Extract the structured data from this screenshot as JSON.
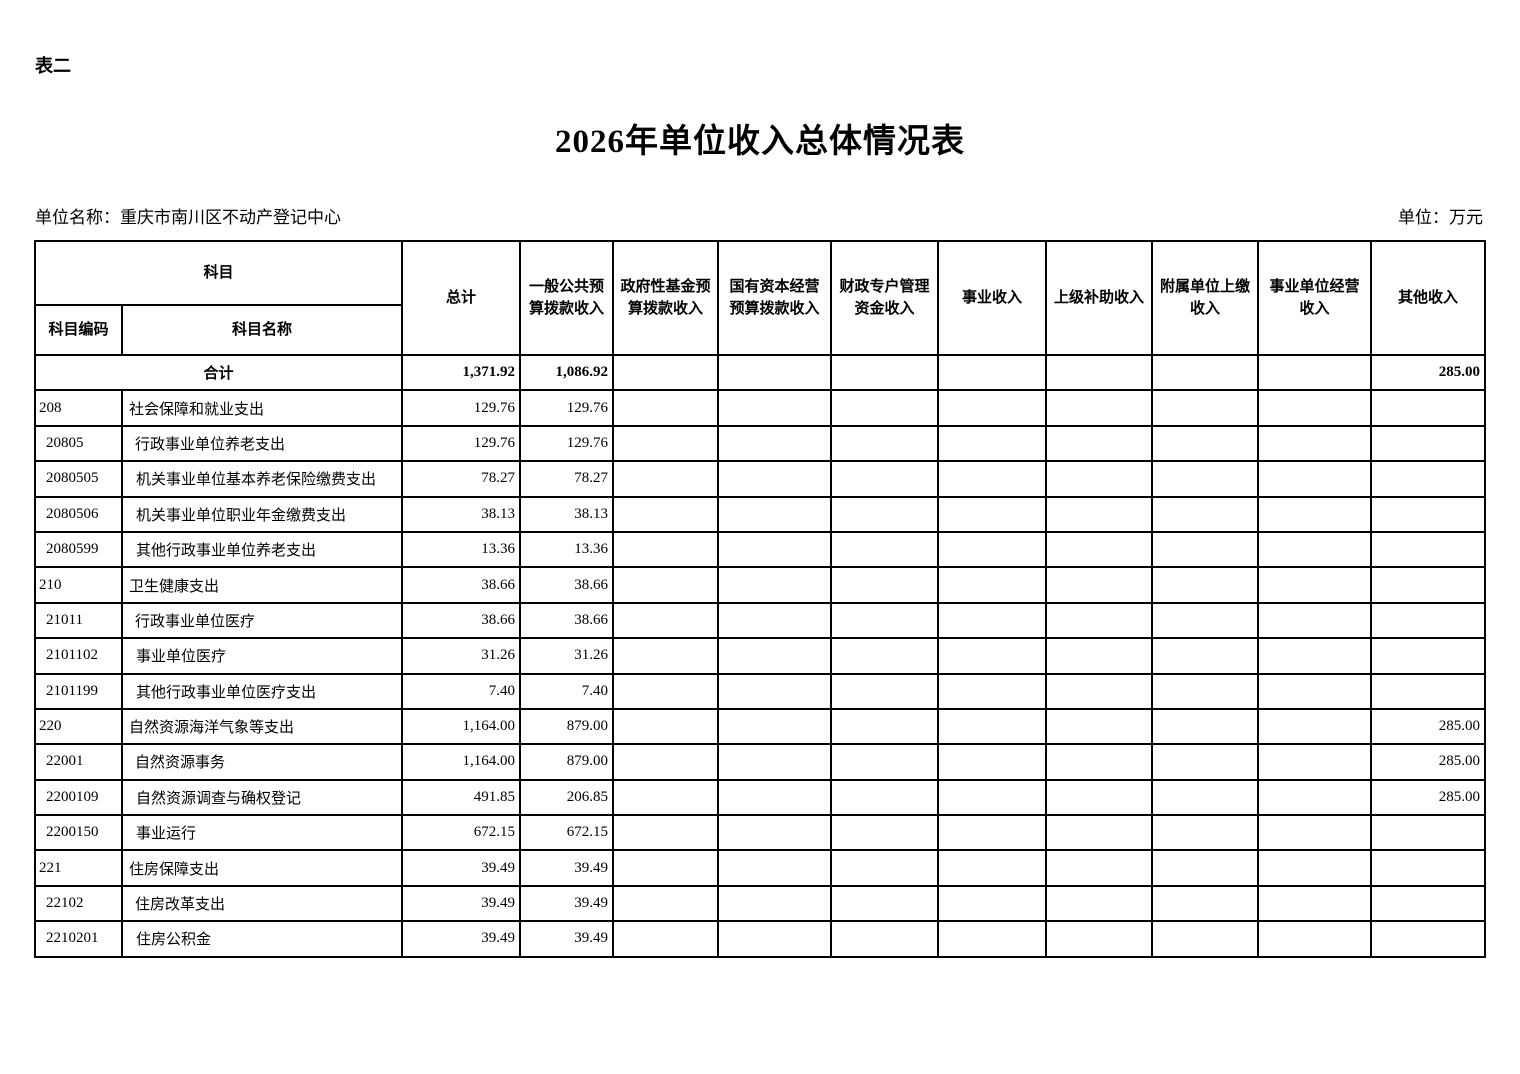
{
  "page": {
    "form_label": "表二",
    "title": "2026年单位收入总体情况表",
    "unit_name": "单位名称：重庆市南川区不动产登记中心",
    "unit_measure": "单位：万元"
  },
  "table": {
    "header": {
      "subject_group": "科目",
      "subject_code": "科目编码",
      "subject_name": "科目名称",
      "columns": [
        "总计",
        "一般公共预算拨款收入",
        "政府性基金预算拨款收入",
        "国有资本经营预算拨款收入",
        "财政专户管理资金收入",
        "事业收入",
        "上级补助收入",
        "附属单位上缴收入",
        "事业单位经营收入",
        "其他收入"
      ]
    },
    "total_row": {
      "label": "合计",
      "values": [
        "1,371.92",
        "1,086.92",
        "",
        "",
        "",
        "",
        "",
        "",
        "",
        "285.00"
      ]
    },
    "rows": [
      {
        "code": "208",
        "name": "社会保障和就业支出",
        "level": 1,
        "values": [
          "129.76",
          "129.76",
          "",
          "",
          "",
          "",
          "",
          "",
          "",
          ""
        ]
      },
      {
        "code": "20805",
        "name": "行政事业单位养老支出",
        "level": 2,
        "values": [
          "129.76",
          "129.76",
          "",
          "",
          "",
          "",
          "",
          "",
          "",
          ""
        ]
      },
      {
        "code": "2080505",
        "name": "机关事业单位基本养老保险缴费支出",
        "level": 3,
        "values": [
          "78.27",
          "78.27",
          "",
          "",
          "",
          "",
          "",
          "",
          "",
          ""
        ]
      },
      {
        "code": "2080506",
        "name": "机关事业单位职业年金缴费支出",
        "level": 3,
        "values": [
          "38.13",
          "38.13",
          "",
          "",
          "",
          "",
          "",
          "",
          "",
          ""
        ]
      },
      {
        "code": "2080599",
        "name": "其他行政事业单位养老支出",
        "level": 3,
        "values": [
          "13.36",
          "13.36",
          "",
          "",
          "",
          "",
          "",
          "",
          "",
          ""
        ]
      },
      {
        "code": "210",
        "name": "卫生健康支出",
        "level": 1,
        "values": [
          "38.66",
          "38.66",
          "",
          "",
          "",
          "",
          "",
          "",
          "",
          ""
        ]
      },
      {
        "code": "21011",
        "name": "行政事业单位医疗",
        "level": 2,
        "values": [
          "38.66",
          "38.66",
          "",
          "",
          "",
          "",
          "",
          "",
          "",
          ""
        ]
      },
      {
        "code": "2101102",
        "name": "事业单位医疗",
        "level": 3,
        "values": [
          "31.26",
          "31.26",
          "",
          "",
          "",
          "",
          "",
          "",
          "",
          ""
        ]
      },
      {
        "code": "2101199",
        "name": "其他行政事业单位医疗支出",
        "level": 3,
        "values": [
          "7.40",
          "7.40",
          "",
          "",
          "",
          "",
          "",
          "",
          "",
          ""
        ]
      },
      {
        "code": "220",
        "name": "自然资源海洋气象等支出",
        "level": 1,
        "values": [
          "1,164.00",
          "879.00",
          "",
          "",
          "",
          "",
          "",
          "",
          "",
          "285.00"
        ]
      },
      {
        "code": "22001",
        "name": "自然资源事务",
        "level": 2,
        "values": [
          "1,164.00",
          "879.00",
          "",
          "",
          "",
          "",
          "",
          "",
          "",
          "285.00"
        ]
      },
      {
        "code": "2200109",
        "name": "自然资源调查与确权登记",
        "level": 3,
        "values": [
          "491.85",
          "206.85",
          "",
          "",
          "",
          "",
          "",
          "",
          "",
          "285.00"
        ]
      },
      {
        "code": "2200150",
        "name": "事业运行",
        "level": 3,
        "values": [
          "672.15",
          "672.15",
          "",
          "",
          "",
          "",
          "",
          "",
          "",
          ""
        ]
      },
      {
        "code": "221",
        "name": "住房保障支出",
        "level": 1,
        "values": [
          "39.49",
          "39.49",
          "",
          "",
          "",
          "",
          "",
          "",
          "",
          ""
        ]
      },
      {
        "code": "22102",
        "name": "住房改革支出",
        "level": 2,
        "values": [
          "39.49",
          "39.49",
          "",
          "",
          "",
          "",
          "",
          "",
          "",
          ""
        ]
      },
      {
        "code": "2210201",
        "name": "住房公积金",
        "level": 3,
        "values": [
          "39.49",
          "39.49",
          "",
          "",
          "",
          "",
          "",
          "",
          "",
          ""
        ]
      }
    ]
  }
}
